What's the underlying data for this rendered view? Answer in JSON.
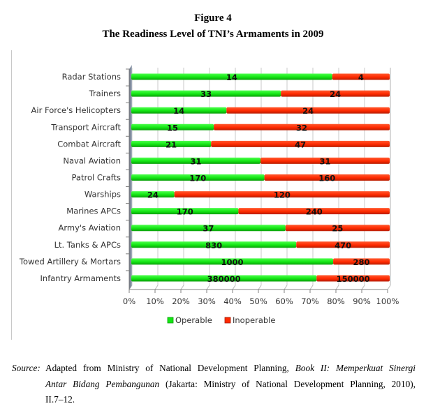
{
  "figure": {
    "number": "Figure 4",
    "caption": "The Readiness Level of TNI’s Armaments in 2009"
  },
  "colors": {
    "operable": "#13e613",
    "inoperable": "#ff2a00",
    "grid": "#c8c8c8",
    "wall": "#7a8596"
  },
  "chart_data": {
    "type": "bar",
    "orientation": "horizontal",
    "stacking": "percent",
    "title": "The Readiness Level of TNI’s Armaments in 2009",
    "categories": [
      "Radar Stations",
      "Trainers",
      "Air Force's Helicopters",
      "Transport Aircraft",
      "Combat Aircraft",
      "Naval Aviation",
      "Patrol Crafts",
      "Warships",
      "Marines APCs",
      "Army's Aviation",
      "Lt. Tanks & APCs",
      "Towed Artillery & Mortars",
      "Infantry Armaments"
    ],
    "series": [
      {
        "name": "Operable",
        "values": [
          14,
          33,
          14,
          15,
          21,
          31,
          170,
          24,
          170,
          37,
          830,
          1000,
          380000
        ]
      },
      {
        "name": "Inoperable",
        "values": [
          4,
          24,
          24,
          32,
          47,
          31,
          160,
          120,
          240,
          25,
          470,
          280,
          150000
        ]
      }
    ],
    "value_labels": {
      "Operable": [
        "14",
        "33",
        "14",
        "15",
        "21",
        "31",
        "170",
        "24",
        "170",
        "37",
        "830",
        "1000",
        "380000"
      ],
      "Inoperable": [
        "4",
        "24",
        "24",
        "32",
        "47",
        "31",
        "160",
        "120",
        "240",
        "25",
        "470",
        "280",
        "150000"
      ]
    },
    "xticks": [
      "0%",
      "10%",
      "20%",
      "30%",
      "40%",
      "50%",
      "60%",
      "70%",
      "80%",
      "90%",
      "100%"
    ],
    "xlim": [
      0,
      100
    ],
    "xlabel": "",
    "ylabel": "",
    "grid": true,
    "legend": {
      "placement": "bottom",
      "entries": [
        "Operable",
        "Inoperable"
      ]
    }
  },
  "source": {
    "label": "Source:",
    "text_1": "Adapted from Ministry of National Development Planning,",
    "italic_1": "Book II: Memperkuat Sinergi",
    "italic_2": "Antar Bidang Pembangunan",
    "text_2": "(Jakarta: Ministry of National Development Planning, 2010),",
    "text_3": "II.7–12."
  }
}
